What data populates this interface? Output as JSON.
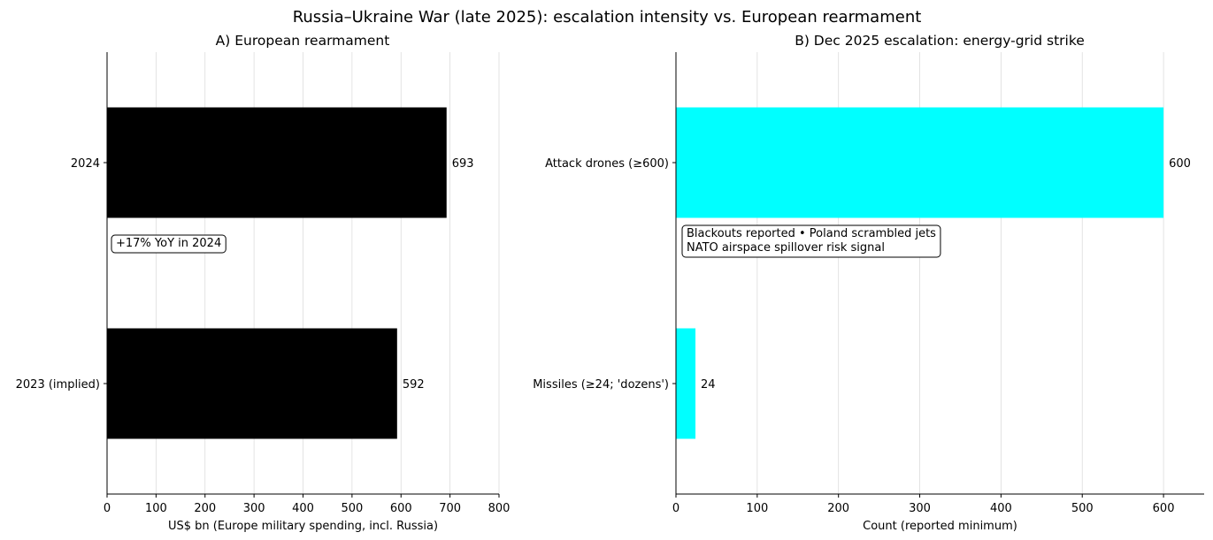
{
  "figure": {
    "title": "Russia–Ukraine War (late 2025): escalation intensity vs. European rearmament"
  },
  "chart_data": [
    {
      "type": "bar",
      "orientation": "horizontal",
      "title": "A) European rearmament",
      "categories": [
        "2023 (implied)",
        "2024"
      ],
      "values": [
        592,
        693
      ],
      "value_labels": [
        "592",
        "693"
      ],
      "xlabel": "US$ bn (Europe military spending, incl. Russia)",
      "ylabel": "",
      "xlim": [
        0,
        800
      ],
      "xticks": [
        "0",
        "100",
        "200",
        "300",
        "400",
        "500",
        "600",
        "700",
        "800"
      ],
      "grid": "vertical",
      "bar_color": "#000000",
      "annotation": [
        "+17% YoY in 2024"
      ]
    },
    {
      "type": "bar",
      "orientation": "horizontal",
      "title": "B) Dec 2025 escalation: energy-grid strike",
      "categories": [
        "Missiles (≥24; 'dozens')",
        "Attack drones (≥600)"
      ],
      "values": [
        24,
        600
      ],
      "value_labels": [
        "24",
        "600"
      ],
      "xlabel": "Count (reported minimum)",
      "ylabel": "",
      "xlim": [
        0,
        650
      ],
      "xticks": [
        "0",
        "100",
        "200",
        "300",
        "400",
        "500",
        "600"
      ],
      "grid": "vertical",
      "bar_color": "#00ffff",
      "annotation": [
        "Blackouts reported • Poland scrambled jets",
        "NATO airspace spillover risk signal"
      ]
    }
  ]
}
